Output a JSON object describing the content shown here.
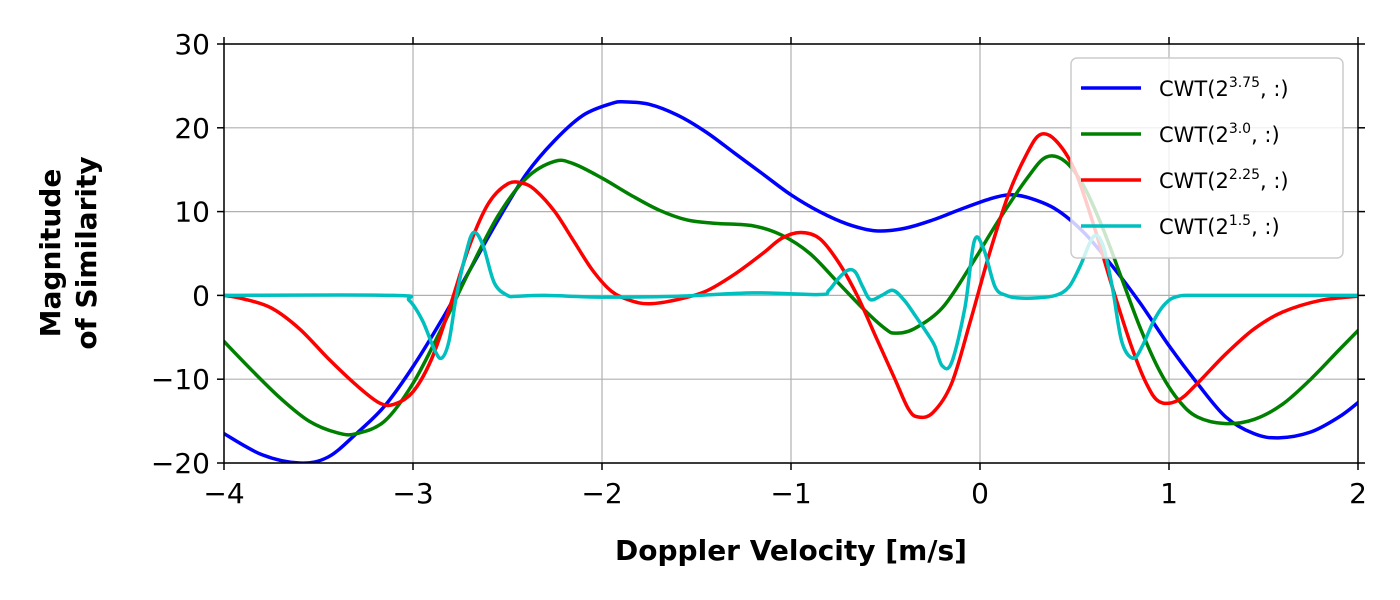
{
  "chart_data": {
    "type": "line",
    "title": "",
    "xlabel": "Doppler Velocity [m/s]",
    "ylabel_lines": [
      "Magnitude",
      "of Similarity"
    ],
    "xlim": [
      -4,
      2
    ],
    "ylim": [
      -20,
      30
    ],
    "xticks": [
      -4,
      -3,
      -2,
      -1,
      0,
      1,
      2
    ],
    "yticks": [
      -20,
      -10,
      0,
      10,
      20,
      30
    ],
    "xtick_labels": [
      "−4",
      "−3",
      "−2",
      "−1",
      "0",
      "1",
      "2"
    ],
    "ytick_labels": [
      "−20",
      "−10",
      "0",
      "10",
      "20",
      "30"
    ],
    "grid": true,
    "legend_position": "top-right",
    "series": [
      {
        "name": "CWT(2^3.75, :)",
        "label_base": "CWT(2",
        "label_sup": "3.75",
        "label_tail": ", :)",
        "color": "#0000ff",
        "points": [
          [
            -4,
            -16.5
          ],
          [
            -3.8,
            -19
          ],
          [
            -3.6,
            -20
          ],
          [
            -3.45,
            -19.3
          ],
          [
            -3.3,
            -16.5
          ],
          [
            -3.15,
            -13.2
          ],
          [
            -3,
            -8.5
          ],
          [
            -2.85,
            -3
          ],
          [
            -2.7,
            3
          ],
          [
            -2.55,
            9
          ],
          [
            -2.4,
            14.5
          ],
          [
            -2.25,
            18.5
          ],
          [
            -2.1,
            21.5
          ],
          [
            -1.95,
            22.9
          ],
          [
            -1.88,
            23.1
          ],
          [
            -1.75,
            22.8
          ],
          [
            -1.6,
            21.5
          ],
          [
            -1.45,
            19.5
          ],
          [
            -1.3,
            17
          ],
          [
            -1.15,
            14.5
          ],
          [
            -1,
            12
          ],
          [
            -0.85,
            10
          ],
          [
            -0.7,
            8.5
          ],
          [
            -0.55,
            7.7
          ],
          [
            -0.4,
            8
          ],
          [
            -0.25,
            9
          ],
          [
            -0.1,
            10.3
          ],
          [
            0.05,
            11.5
          ],
          [
            0.15,
            12
          ],
          [
            0.25,
            11.7
          ],
          [
            0.4,
            10.3
          ],
          [
            0.55,
            7.5
          ],
          [
            0.7,
            3.5
          ],
          [
            0.85,
            -1
          ],
          [
            1,
            -6
          ],
          [
            1.15,
            -10.5
          ],
          [
            1.3,
            -14.5
          ],
          [
            1.45,
            -16.5
          ],
          [
            1.58,
            -17
          ],
          [
            1.75,
            -16.3
          ],
          [
            1.9,
            -14.5
          ],
          [
            2,
            -12.8
          ]
        ]
      },
      {
        "name": "CWT(2^3.0, :)",
        "label_base": "CWT(2",
        "label_sup": "3.0",
        "label_tail": ", :)",
        "color": "#008000",
        "points": [
          [
            -4,
            -5.5
          ],
          [
            -3.85,
            -9
          ],
          [
            -3.7,
            -12.3
          ],
          [
            -3.55,
            -15
          ],
          [
            -3.4,
            -16.4
          ],
          [
            -3.3,
            -16.5
          ],
          [
            -3.15,
            -15
          ],
          [
            -3,
            -10.5
          ],
          [
            -2.85,
            -4
          ],
          [
            -2.7,
            3
          ],
          [
            -2.55,
            9.5
          ],
          [
            -2.4,
            14
          ],
          [
            -2.25,
            16
          ],
          [
            -2.15,
            15.7
          ],
          [
            -2,
            14
          ],
          [
            -1.85,
            12
          ],
          [
            -1.7,
            10.2
          ],
          [
            -1.55,
            9
          ],
          [
            -1.4,
            8.6
          ],
          [
            -1.2,
            8.3
          ],
          [
            -1.05,
            7.2
          ],
          [
            -0.9,
            5
          ],
          [
            -0.75,
            1.5
          ],
          [
            -0.6,
            -2
          ],
          [
            -0.5,
            -4
          ],
          [
            -0.45,
            -4.5
          ],
          [
            -0.35,
            -4
          ],
          [
            -0.2,
            -1.5
          ],
          [
            -0.05,
            3.5
          ],
          [
            0.1,
            9
          ],
          [
            0.25,
            14
          ],
          [
            0.35,
            16.5
          ],
          [
            0.45,
            16
          ],
          [
            0.55,
            13
          ],
          [
            0.65,
            8
          ],
          [
            0.75,
            2
          ],
          [
            0.85,
            -4
          ],
          [
            0.95,
            -9
          ],
          [
            1.05,
            -12.5
          ],
          [
            1.15,
            -14.5
          ],
          [
            1.3,
            -15.3
          ],
          [
            1.45,
            -14.8
          ],
          [
            1.6,
            -13
          ],
          [
            1.75,
            -10
          ],
          [
            1.9,
            -6.5
          ],
          [
            2,
            -4.2
          ]
        ]
      },
      {
        "name": "CWT(2^2.25, :)",
        "label_base": "CWT(2",
        "label_sup": "2.25",
        "label_tail": ", :)",
        "color": "#ff0000",
        "points": [
          [
            -4,
            0
          ],
          [
            -3.9,
            -0.4
          ],
          [
            -3.75,
            -1.5
          ],
          [
            -3.6,
            -4
          ],
          [
            -3.45,
            -7.5
          ],
          [
            -3.3,
            -10.7
          ],
          [
            -3.18,
            -12.8
          ],
          [
            -3.1,
            -13
          ],
          [
            -3,
            -11.5
          ],
          [
            -2.9,
            -7.5
          ],
          [
            -2.8,
            -1
          ],
          [
            -2.7,
            6
          ],
          [
            -2.6,
            11
          ],
          [
            -2.5,
            13.3
          ],
          [
            -2.42,
            13.4
          ],
          [
            -2.35,
            12.5
          ],
          [
            -2.25,
            10
          ],
          [
            -2.15,
            6.5
          ],
          [
            -2.05,
            3
          ],
          [
            -1.95,
            0.5
          ],
          [
            -1.85,
            -0.6
          ],
          [
            -1.75,
            -1
          ],
          [
            -1.6,
            -0.5
          ],
          [
            -1.45,
            0.5
          ],
          [
            -1.3,
            2.5
          ],
          [
            -1.15,
            5
          ],
          [
            -1.05,
            6.8
          ],
          [
            -0.95,
            7.5
          ],
          [
            -0.85,
            6.8
          ],
          [
            -0.75,
            4
          ],
          [
            -0.65,
            0
          ],
          [
            -0.55,
            -5
          ],
          [
            -0.45,
            -10
          ],
          [
            -0.38,
            -13.5
          ],
          [
            -0.33,
            -14.5
          ],
          [
            -0.25,
            -14
          ],
          [
            -0.15,
            -10.5
          ],
          [
            -0.05,
            -3
          ],
          [
            0.05,
            5
          ],
          [
            0.15,
            12
          ],
          [
            0.25,
            17
          ],
          [
            0.32,
            19.2
          ],
          [
            0.4,
            18.5
          ],
          [
            0.5,
            15
          ],
          [
            0.6,
            8.5
          ],
          [
            0.7,
            1
          ],
          [
            0.8,
            -6
          ],
          [
            0.88,
            -10.5
          ],
          [
            0.95,
            -12.7
          ],
          [
            1.05,
            -12.5
          ],
          [
            1.15,
            -10.5
          ],
          [
            1.3,
            -7
          ],
          [
            1.45,
            -4
          ],
          [
            1.6,
            -2
          ],
          [
            1.8,
            -0.6
          ],
          [
            2,
            -0.1
          ]
        ]
      },
      {
        "name": "CWT(2^1.5, :)",
        "label_base": "CWT(2",
        "label_sup": "1.5",
        "label_tail": ", :)",
        "color": "#00bfbf",
        "points": [
          [
            -4,
            0
          ],
          [
            -3.1,
            0
          ],
          [
            -3.02,
            -0.6
          ],
          [
            -2.95,
            -3
          ],
          [
            -2.89,
            -6.3
          ],
          [
            -2.85,
            -7.5
          ],
          [
            -2.81,
            -5.5
          ],
          [
            -2.77,
            0
          ],
          [
            -2.72,
            5
          ],
          [
            -2.68,
            7.5
          ],
          [
            -2.63,
            6
          ],
          [
            -2.57,
            1.5
          ],
          [
            -2.5,
            0
          ],
          [
            -2.45,
            -0.1
          ],
          [
            -2.3,
            0
          ],
          [
            -2,
            -0.2
          ],
          [
            -1.6,
            -0.1
          ],
          [
            -1.2,
            0.3
          ],
          [
            -0.85,
            0.1
          ],
          [
            -0.8,
            0.6
          ],
          [
            -0.75,
            2
          ],
          [
            -0.7,
            3
          ],
          [
            -0.66,
            2.8
          ],
          [
            -0.62,
            1
          ],
          [
            -0.58,
            -0.5
          ],
          [
            -0.52,
            0
          ],
          [
            -0.46,
            0.6
          ],
          [
            -0.4,
            -0.6
          ],
          [
            -0.34,
            -2.5
          ],
          [
            -0.28,
            -4.5
          ],
          [
            -0.24,
            -6
          ],
          [
            -0.2,
            -8.4
          ],
          [
            -0.15,
            -8
          ],
          [
            -0.08,
            -1.5
          ],
          [
            -0.03,
            6.5
          ],
          [
            0.02,
            5.5
          ],
          [
            0.08,
            1
          ],
          [
            0.14,
            0
          ],
          [
            0.2,
            -0.3
          ],
          [
            0.3,
            -0.3
          ],
          [
            0.4,
            0
          ],
          [
            0.47,
            1
          ],
          [
            0.53,
            3.5
          ],
          [
            0.6,
            7
          ],
          [
            0.65,
            6
          ],
          [
            0.7,
            1
          ],
          [
            0.75,
            -5.5
          ],
          [
            0.81,
            -7.5
          ],
          [
            0.86,
            -6
          ],
          [
            0.92,
            -3
          ],
          [
            0.98,
            -1
          ],
          [
            1.05,
            -0.1
          ],
          [
            1.2,
            0
          ],
          [
            2,
            0
          ]
        ]
      }
    ]
  }
}
